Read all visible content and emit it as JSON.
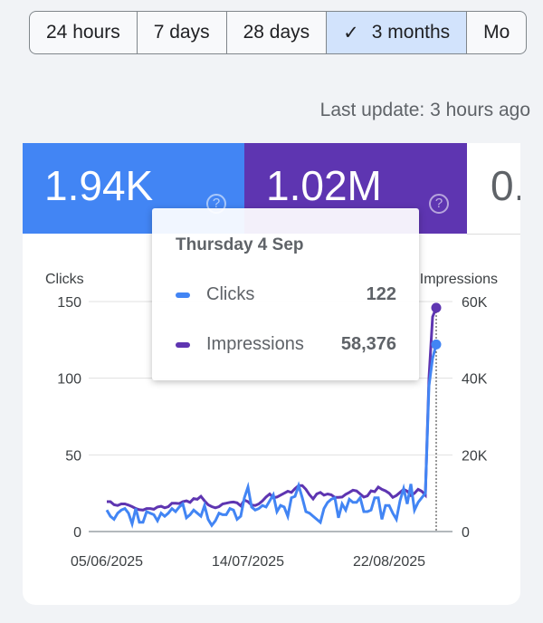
{
  "tabs": [
    {
      "label": "24 hours"
    },
    {
      "label": "7 days"
    },
    {
      "label": "28 days"
    },
    {
      "label": "3 months",
      "selected": true
    },
    {
      "label": "Mo"
    }
  ],
  "last_update": "Last update: 3 hours ago",
  "metrics": [
    {
      "value": "1.94K",
      "color": "#4285f4"
    },
    {
      "value": "1.02M",
      "color": "#5e35b1"
    },
    {
      "value": "0."
    }
  ],
  "tooltip": {
    "date": "Thursday 4 Sep",
    "rows": [
      {
        "label": "Clicks",
        "value": "122",
        "color": "#4285f4"
      },
      {
        "label": "Impressions",
        "value": "58,376",
        "color": "#5e35b1"
      }
    ]
  },
  "chart_data": {
    "type": "line",
    "x_start": "05/06/2025",
    "x_end": "04/09/2025",
    "x_tick_labels": [
      "05/06/2025",
      "14/07/2025",
      "22/08/2025"
    ],
    "left_axis": {
      "label": "Clicks",
      "ticks": [
        "150",
        "100",
        "50",
        "0"
      ],
      "range": [
        0,
        150
      ]
    },
    "right_axis": {
      "label": "Impressions",
      "ticks": [
        "60K",
        "40K",
        "20K",
        "0"
      ],
      "range": [
        0,
        60000
      ]
    },
    "grid": true,
    "series": [
      {
        "name": "Clicks",
        "axis": "left",
        "color": "#4285f4",
        "values": [
          14,
          10,
          8,
          12,
          14,
          15,
          12,
          5,
          15,
          6,
          6,
          13,
          12,
          11,
          7,
          12,
          10,
          12,
          15,
          13,
          16,
          18,
          9,
          11,
          14,
          12,
          10,
          17,
          8,
          4,
          7,
          12,
          11,
          11,
          15,
          14,
          8,
          10,
          22,
          29,
          16,
          14,
          15,
          17,
          16,
          20,
          24,
          13,
          17,
          16,
          10,
          22,
          23,
          30,
          22,
          13,
          12,
          10,
          8,
          6,
          15,
          19,
          21,
          22,
          9,
          18,
          14,
          21,
          19,
          19,
          22,
          13,
          13,
          14,
          22,
          22,
          8,
          17,
          17,
          12,
          8,
          20,
          28,
          18,
          31,
          14,
          19,
          22,
          25,
          95,
          113,
          122
        ]
      },
      {
        "name": "Impressions",
        "axis": "right",
        "color": "#5e35b1",
        "values": [
          7800,
          7800,
          7000,
          6800,
          7200,
          7200,
          6900,
          6500,
          6000,
          5700,
          5600,
          6000,
          6000,
          5800,
          6400,
          6600,
          6200,
          6500,
          7400,
          7400,
          7300,
          7800,
          8000,
          7600,
          8600,
          8400,
          9200,
          8000,
          7000,
          6500,
          6200,
          6500,
          7200,
          7400,
          7600,
          7700,
          7500,
          6700,
          8200,
          7800,
          6900,
          6800,
          7200,
          8000,
          9000,
          9800,
          8800,
          9000,
          9500,
          10000,
          10500,
          10200,
          11200,
          12000,
          12000,
          11000,
          9600,
          8500,
          9800,
          10200,
          9500,
          9800,
          9600,
          8900,
          8900,
          9000,
          9700,
          10200,
          10800,
          10600,
          9800,
          9000,
          9300,
          10600,
          10400,
          11600,
          11000,
          10600,
          10000,
          8900,
          9400,
          10200,
          11000,
          10500,
          9400,
          10000,
          11000,
          10500,
          9500,
          40000,
          56000,
          58376
        ]
      }
    ],
    "highlight": "04/09/2025"
  }
}
